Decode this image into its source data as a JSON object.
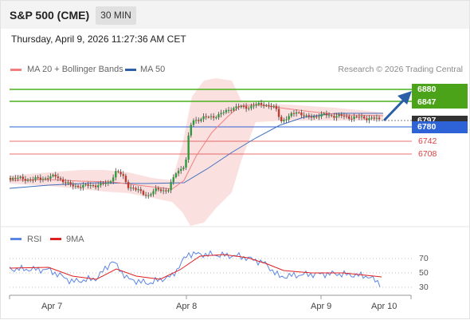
{
  "header": {
    "title": "S&P 500 (CME)",
    "timeframe": "30 MIN"
  },
  "datetime": "Thursday, April 9, 2026 11:27:36 AM CET",
  "legend": {
    "ma20": "MA 20 + Bollinger Bands",
    "ma50": "MA 50",
    "rsi": "RSI",
    "rsi_ma": "9MA"
  },
  "credit": "Research © 2026 Trading Central",
  "levels": {
    "r2": "6880",
    "r1": "6847",
    "last_hidden": "6797",
    "pivot": "6780",
    "s1": "6742",
    "s2": "6708"
  },
  "rsi_ticks": [
    "70",
    "50",
    "30"
  ],
  "x_labels": [
    "Apr 7",
    "Apr 8",
    "Apr 9",
    "Apr 10"
  ],
  "colors": {
    "resistance": "#4caf1d",
    "pivot": "#2d63d6",
    "support": "#e04040",
    "ma20": "#f08080",
    "ma50": "#4070c0",
    "rsi": "#5b86e5",
    "rsi_ma": "#e02020",
    "bull": "#2f9a3c",
    "bear": "#c0392b",
    "arrow": "#2a5fa8"
  }
}
